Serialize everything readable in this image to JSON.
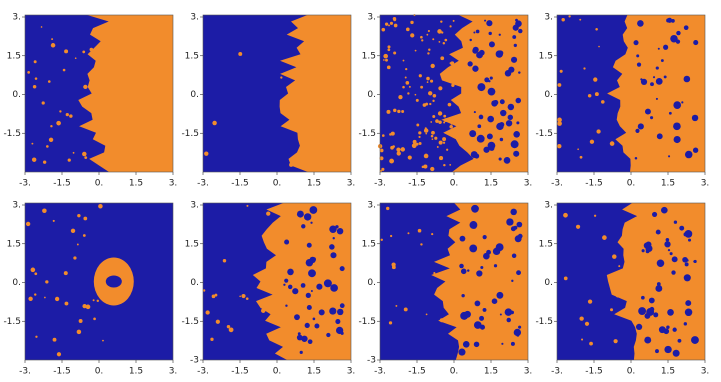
{
  "panels": [
    {
      "x_tick_labels": [
        "-3.",
        "-1.5",
        "0.",
        "1.5",
        "3."
      ],
      "y_tick_labels": [
        "3.",
        "1.5",
        "0.",
        "-1.5"
      ]
    },
    {
      "x_tick_labels": [
        "-3.",
        "-1.5",
        "0.",
        "1.5",
        "3."
      ],
      "y_tick_labels": [
        "3.",
        "1.5",
        "0.",
        "-1.5"
      ]
    },
    {
      "x_tick_labels": [
        "-3.",
        "-1.5",
        "0.",
        "1.5",
        "3."
      ],
      "y_tick_labels": [
        "3.",
        "1.5",
        "0.",
        "-1.5"
      ]
    },
    {
      "x_tick_labels": [
        "-3.",
        "-1.5",
        "0.",
        "1.5",
        "3."
      ],
      "y_tick_labels": [
        "3.",
        "1.5",
        "0.",
        "-1.5"
      ]
    },
    {
      "x_tick_labels": [
        "-3.",
        "-1.5",
        "0.",
        "1.5",
        "3."
      ],
      "y_tick_labels": [
        "3.",
        "1.5",
        "0.",
        "-1.5"
      ]
    },
    {
      "x_tick_labels": [
        "-3.",
        "-1.5",
        "0.",
        "1.5",
        "3."
      ],
      "y_tick_labels": [
        "3.",
        "1.5",
        "0.",
        "-1.5",
        "-3"
      ]
    },
    {
      "x_tick_labels": [
        "-3.",
        "-1.5",
        "0.",
        "1.5",
        "3."
      ],
      "y_tick_labels": [
        "3.",
        "1.5",
        "0.",
        "-1.5",
        "-3"
      ]
    },
    {
      "x_tick_labels": [
        "-3.",
        "-1.5",
        "0.",
        "1.5",
        "3."
      ],
      "y_tick_labels": [
        "3.",
        "1.5",
        "0.",
        "-1.5"
      ]
    }
  ]
}
